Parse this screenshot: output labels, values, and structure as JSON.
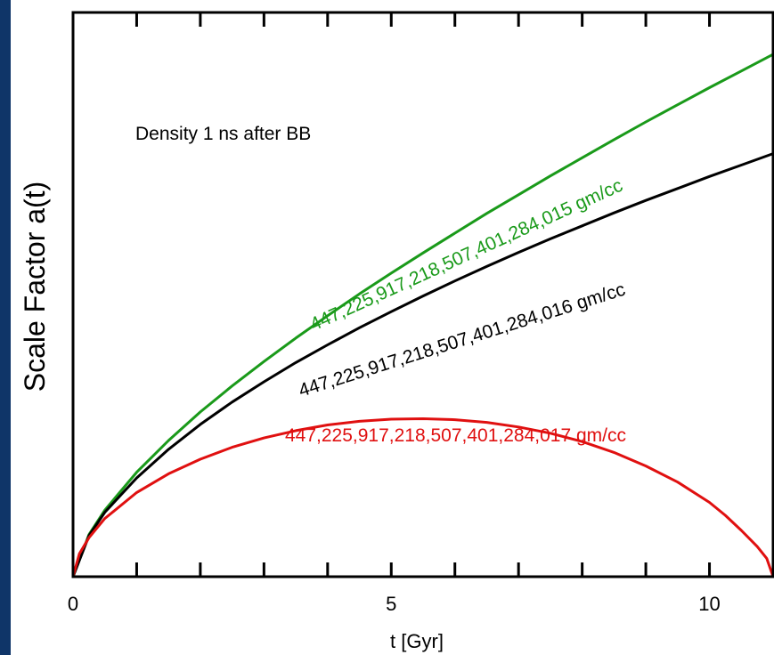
{
  "chart_data": {
    "type": "line",
    "title": "",
    "xlabel": "t [Gyr]",
    "ylabel": "Scale Factor a(t)",
    "xlim": [
      0,
      11
    ],
    "ylim": [
      0,
      1
    ],
    "x_ticks": [
      0,
      5,
      10
    ],
    "x_tick_labels": [
      "0",
      "5",
      "10"
    ],
    "y_tick_labels_shown": false,
    "grid": false,
    "annotation": "Density 1 ns after BB",
    "series": [
      {
        "name": "447,225,917,218,507,401,284,015 gm/cc",
        "color": "#1a9a1a",
        "x": [
          0,
          0.25,
          0.5,
          1,
          1.5,
          2,
          2.5,
          3,
          3.5,
          4,
          4.5,
          5,
          5.5,
          6,
          6.5,
          7,
          7.5,
          8,
          8.5,
          9,
          9.5,
          10,
          10.5,
          11
        ],
        "y": [
          0,
          0.081,
          0.128,
          0.201,
          0.262,
          0.317,
          0.367,
          0.414,
          0.459,
          0.502,
          0.544,
          0.584,
          0.623,
          0.661,
          0.699,
          0.735,
          0.771,
          0.806,
          0.841,
          0.875,
          0.908,
          0.941,
          0.973,
          1.005
        ]
      },
      {
        "name": "447,225,917,218,507,401,284,016 gm/cc",
        "color": "#000000",
        "x": [
          0,
          0.25,
          0.5,
          1,
          1.5,
          2,
          2.5,
          3,
          3.5,
          4,
          4.5,
          5,
          5.5,
          6,
          6.5,
          7,
          7.5,
          8,
          8.5,
          9,
          9.5,
          10,
          10.5,
          11
        ],
        "y": [
          0,
          0.079,
          0.124,
          0.19,
          0.245,
          0.293,
          0.336,
          0.375,
          0.412,
          0.446,
          0.479,
          0.51,
          0.54,
          0.569,
          0.597,
          0.624,
          0.65,
          0.675,
          0.7,
          0.724,
          0.747,
          0.77,
          0.792,
          0.814
        ]
      },
      {
        "name": "447,225,917,218,507,401,284,017 gm/cc",
        "color": "#e01010",
        "x": [
          0,
          0.1,
          0.25,
          0.5,
          1,
          1.5,
          2,
          2.5,
          3,
          3.5,
          4,
          4.5,
          5,
          5.5,
          6,
          6.5,
          7,
          7.5,
          8,
          8.5,
          9,
          9.5,
          10,
          10.25,
          10.5,
          10.75,
          10.9,
          11
        ],
        "y": [
          0,
          0.044,
          0.075,
          0.112,
          0.162,
          0.198,
          0.226,
          0.249,
          0.267,
          0.281,
          0.292,
          0.299,
          0.303,
          0.304,
          0.302,
          0.297,
          0.288,
          0.276,
          0.26,
          0.239,
          0.213,
          0.182,
          0.143,
          0.118,
          0.089,
          0.058,
          0.035,
          0
        ]
      }
    ]
  }
}
